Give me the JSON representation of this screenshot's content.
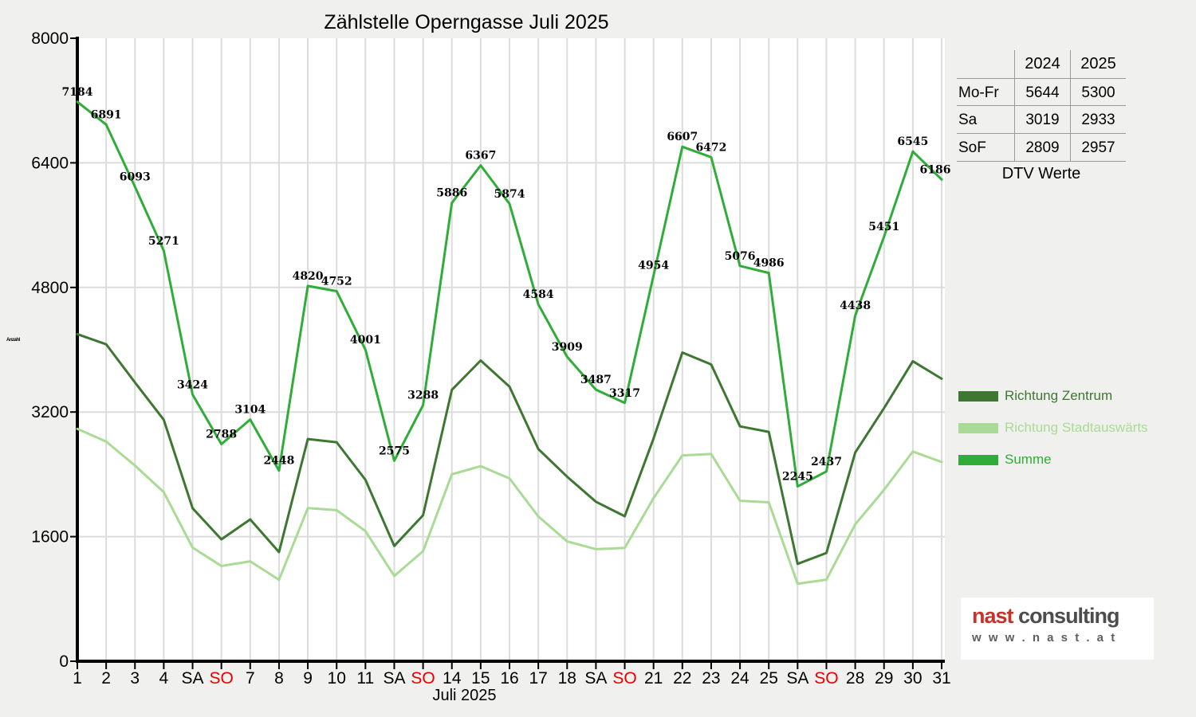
{
  "title": "Zählstelle Operngasse Juli 2025",
  "chart_data": {
    "type": "line",
    "title": "Zählstelle Operngasse Juli 2025",
    "xlabel": "Juli 2025",
    "ylabel": "Anzahl",
    "ylim": [
      0,
      8000
    ],
    "yticks": [
      0,
      1600,
      3200,
      4800,
      6400,
      8000
    ],
    "grid": true,
    "legend_position": "right",
    "categories": [
      "1",
      "2",
      "3",
      "4",
      "SA",
      "SO",
      "7",
      "8",
      "9",
      "10",
      "11",
      "SA",
      "SO",
      "14",
      "15",
      "16",
      "17",
      "18",
      "SA",
      "SO",
      "21",
      "22",
      "23",
      "24",
      "25",
      "SA",
      "SO",
      "28",
      "29",
      "30",
      "31"
    ],
    "series": [
      {
        "name": "Richtung Zentrum",
        "color": "#3E7731",
        "values": [
          4200,
          4070,
          3580,
          3100,
          1965,
          1565,
          1821,
          1402,
          2853,
          2812,
          2330,
          1480,
          1875,
          3485,
          3862,
          3526,
          2725,
          2370,
          2048,
          1862,
          2860,
          3964,
          3811,
          3016,
          2945,
          1250,
          1390,
          2680,
          3250,
          3852,
          3628
        ]
      },
      {
        "name": "Richtung Stadtauswärts",
        "color": "#A9DB96",
        "values": [
          2984,
          2821,
          2513,
          2171,
          1459,
          1223,
          1283,
          1046,
          1967,
          1940,
          1671,
          1095,
          1413,
          2401,
          2505,
          2348,
          1859,
          1539,
          1439,
          1455,
          2094,
          2643,
          2661,
          2060,
          2041,
          995,
          1047,
          1758,
          2201,
          2693,
          2558
        ]
      },
      {
        "name": "Summe",
        "color": "#2FAD38",
        "data_labels": true,
        "values": [
          7184,
          6891,
          6093,
          5271,
          3424,
          2788,
          3104,
          2448,
          4820,
          4752,
          4001,
          2575,
          3288,
          5886,
          6367,
          5874,
          4584,
          3909,
          3487,
          3317,
          4954,
          6607,
          6472,
          5076,
          4986,
          2245,
          2437,
          4438,
          5451,
          6545,
          6186
        ]
      }
    ]
  },
  "table": {
    "col_headers": [
      "2024",
      "2025"
    ],
    "rows": [
      {
        "label": "Mo-Fr",
        "v2024": "5644",
        "v2025": "5300"
      },
      {
        "label": "Sa",
        "v2024": "3019",
        "v2025": "2933"
      },
      {
        "label": "SoF",
        "v2024": "2809",
        "v2025": "2957"
      }
    ],
    "caption": "DTV Werte"
  },
  "logo": {
    "brand_red": "nast",
    "brand_gray": "consulting",
    "url_text": "w w w . n a s t . a t"
  },
  "colors": {
    "background": "#F0F0EF",
    "plot_background": "#FFFFFF",
    "gridline": "#DCDCDC",
    "axis": "#000000",
    "weekend_so_red": "#E80000",
    "series_zentrum": "#3E7731",
    "series_stadtauswaerts": "#A9DB96",
    "series_summe": "#2FAD38"
  }
}
